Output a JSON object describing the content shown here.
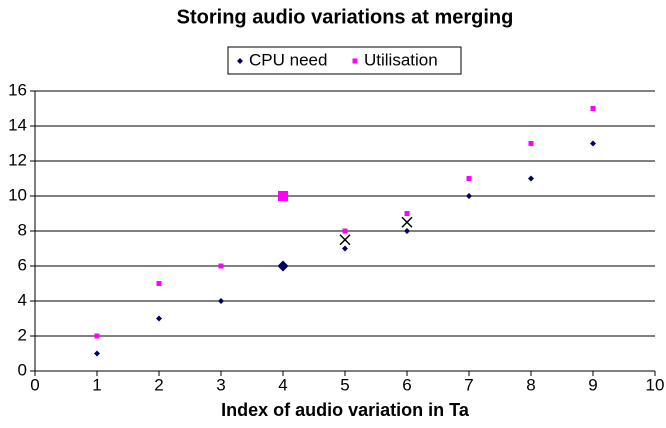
{
  "chart_data": {
    "type": "scatter",
    "title": "Storing audio variations at merging",
    "x_label": "Index of audio variation in Ta",
    "x": [
      1,
      2,
      3,
      4,
      5,
      6,
      7,
      8,
      9
    ],
    "series": [
      {
        "name": "CPU need",
        "color": "#000066",
        "marker": "diamond",
        "values": [
          1,
          3,
          4,
          6,
          7,
          8,
          10,
          11,
          13
        ]
      },
      {
        "name": "Utilisation",
        "color": "#ff00ff",
        "marker": "square",
        "values": [
          2,
          5,
          6,
          10,
          8,
          9,
          11,
          13,
          15
        ]
      }
    ],
    "highlight_x": 4,
    "crosses": {
      "color": "#000000",
      "x": [
        5,
        6
      ],
      "y": [
        7.5,
        8.5
      ]
    },
    "xlim": [
      0,
      10
    ],
    "xticks": [
      0,
      1,
      2,
      3,
      4,
      5,
      6,
      7,
      8,
      9,
      10
    ],
    "ylim": [
      0,
      16
    ],
    "yticks": [
      0,
      2,
      4,
      6,
      8,
      10,
      12,
      14,
      16
    ],
    "grid": true,
    "legend": "top"
  }
}
